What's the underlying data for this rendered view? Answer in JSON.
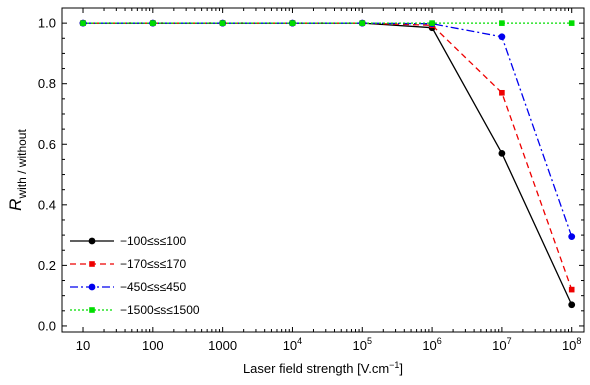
{
  "chart_data": {
    "type": "line",
    "xlabel": "Laser field strength [V.cm",
    "xlabel_sup": "−1",
    "xlabel_end": "]",
    "ylabel_main": "R",
    "ylabel_sub": "with / without",
    "x_scale": "log",
    "xlim": [
      5,
      150000000
    ],
    "ylim": [
      -0.02,
      1.05
    ],
    "grid": false,
    "legend_position": "lower-left",
    "x_ticks": [
      {
        "value": 10,
        "base": "10",
        "exp": ""
      },
      {
        "value": 100,
        "base": "100",
        "exp": ""
      },
      {
        "value": 1000,
        "base": "1000",
        "exp": ""
      },
      {
        "value": 10000,
        "base": "10",
        "exp": "4"
      },
      {
        "value": 100000,
        "base": "10",
        "exp": "5"
      },
      {
        "value": 1000000,
        "base": "10",
        "exp": "6"
      },
      {
        "value": 10000000,
        "base": "10",
        "exp": "7"
      },
      {
        "value": 100000000,
        "base": "10",
        "exp": "8"
      }
    ],
    "y_ticks": [
      {
        "value": 0.0,
        "label": "0.0"
      },
      {
        "value": 0.2,
        "label": "0.2"
      },
      {
        "value": 0.4,
        "label": "0.4"
      },
      {
        "value": 0.6,
        "label": "0.6"
      },
      {
        "value": 0.8,
        "label": "0.8"
      },
      {
        "value": 1.0,
        "label": "1.0"
      }
    ],
    "x": [
      10,
      100,
      1000,
      10000,
      100000,
      1000000,
      10000000,
      100000000
    ],
    "series": [
      {
        "name": "−100≤s≤100",
        "color": "#000000",
        "dash": "",
        "marker": "circle",
        "values": [
          1.0,
          1.0,
          1.0,
          1.0,
          1.0,
          0.985,
          0.57,
          0.07
        ]
      },
      {
        "name": "−170≤s≤170",
        "color": "#ee0000",
        "dash": "6,4",
        "marker": "square",
        "values": [
          1.0,
          1.0,
          1.0,
          1.0,
          1.0,
          0.993,
          0.77,
          0.12
        ]
      },
      {
        "name": "−450≤s≤450",
        "color": "#0000ee",
        "dash": "8,3,2,3",
        "marker": "circle",
        "values": [
          1.0,
          1.0,
          1.0,
          1.0,
          1.0,
          0.998,
          0.955,
          0.295
        ]
      },
      {
        "name": "−1500≤s≤1500",
        "color": "#00dd00",
        "dash": "2,2",
        "marker": "square",
        "values": [
          1.0,
          1.0,
          1.0,
          1.0,
          1.0,
          1.0,
          1.0,
          1.0
        ]
      }
    ]
  }
}
